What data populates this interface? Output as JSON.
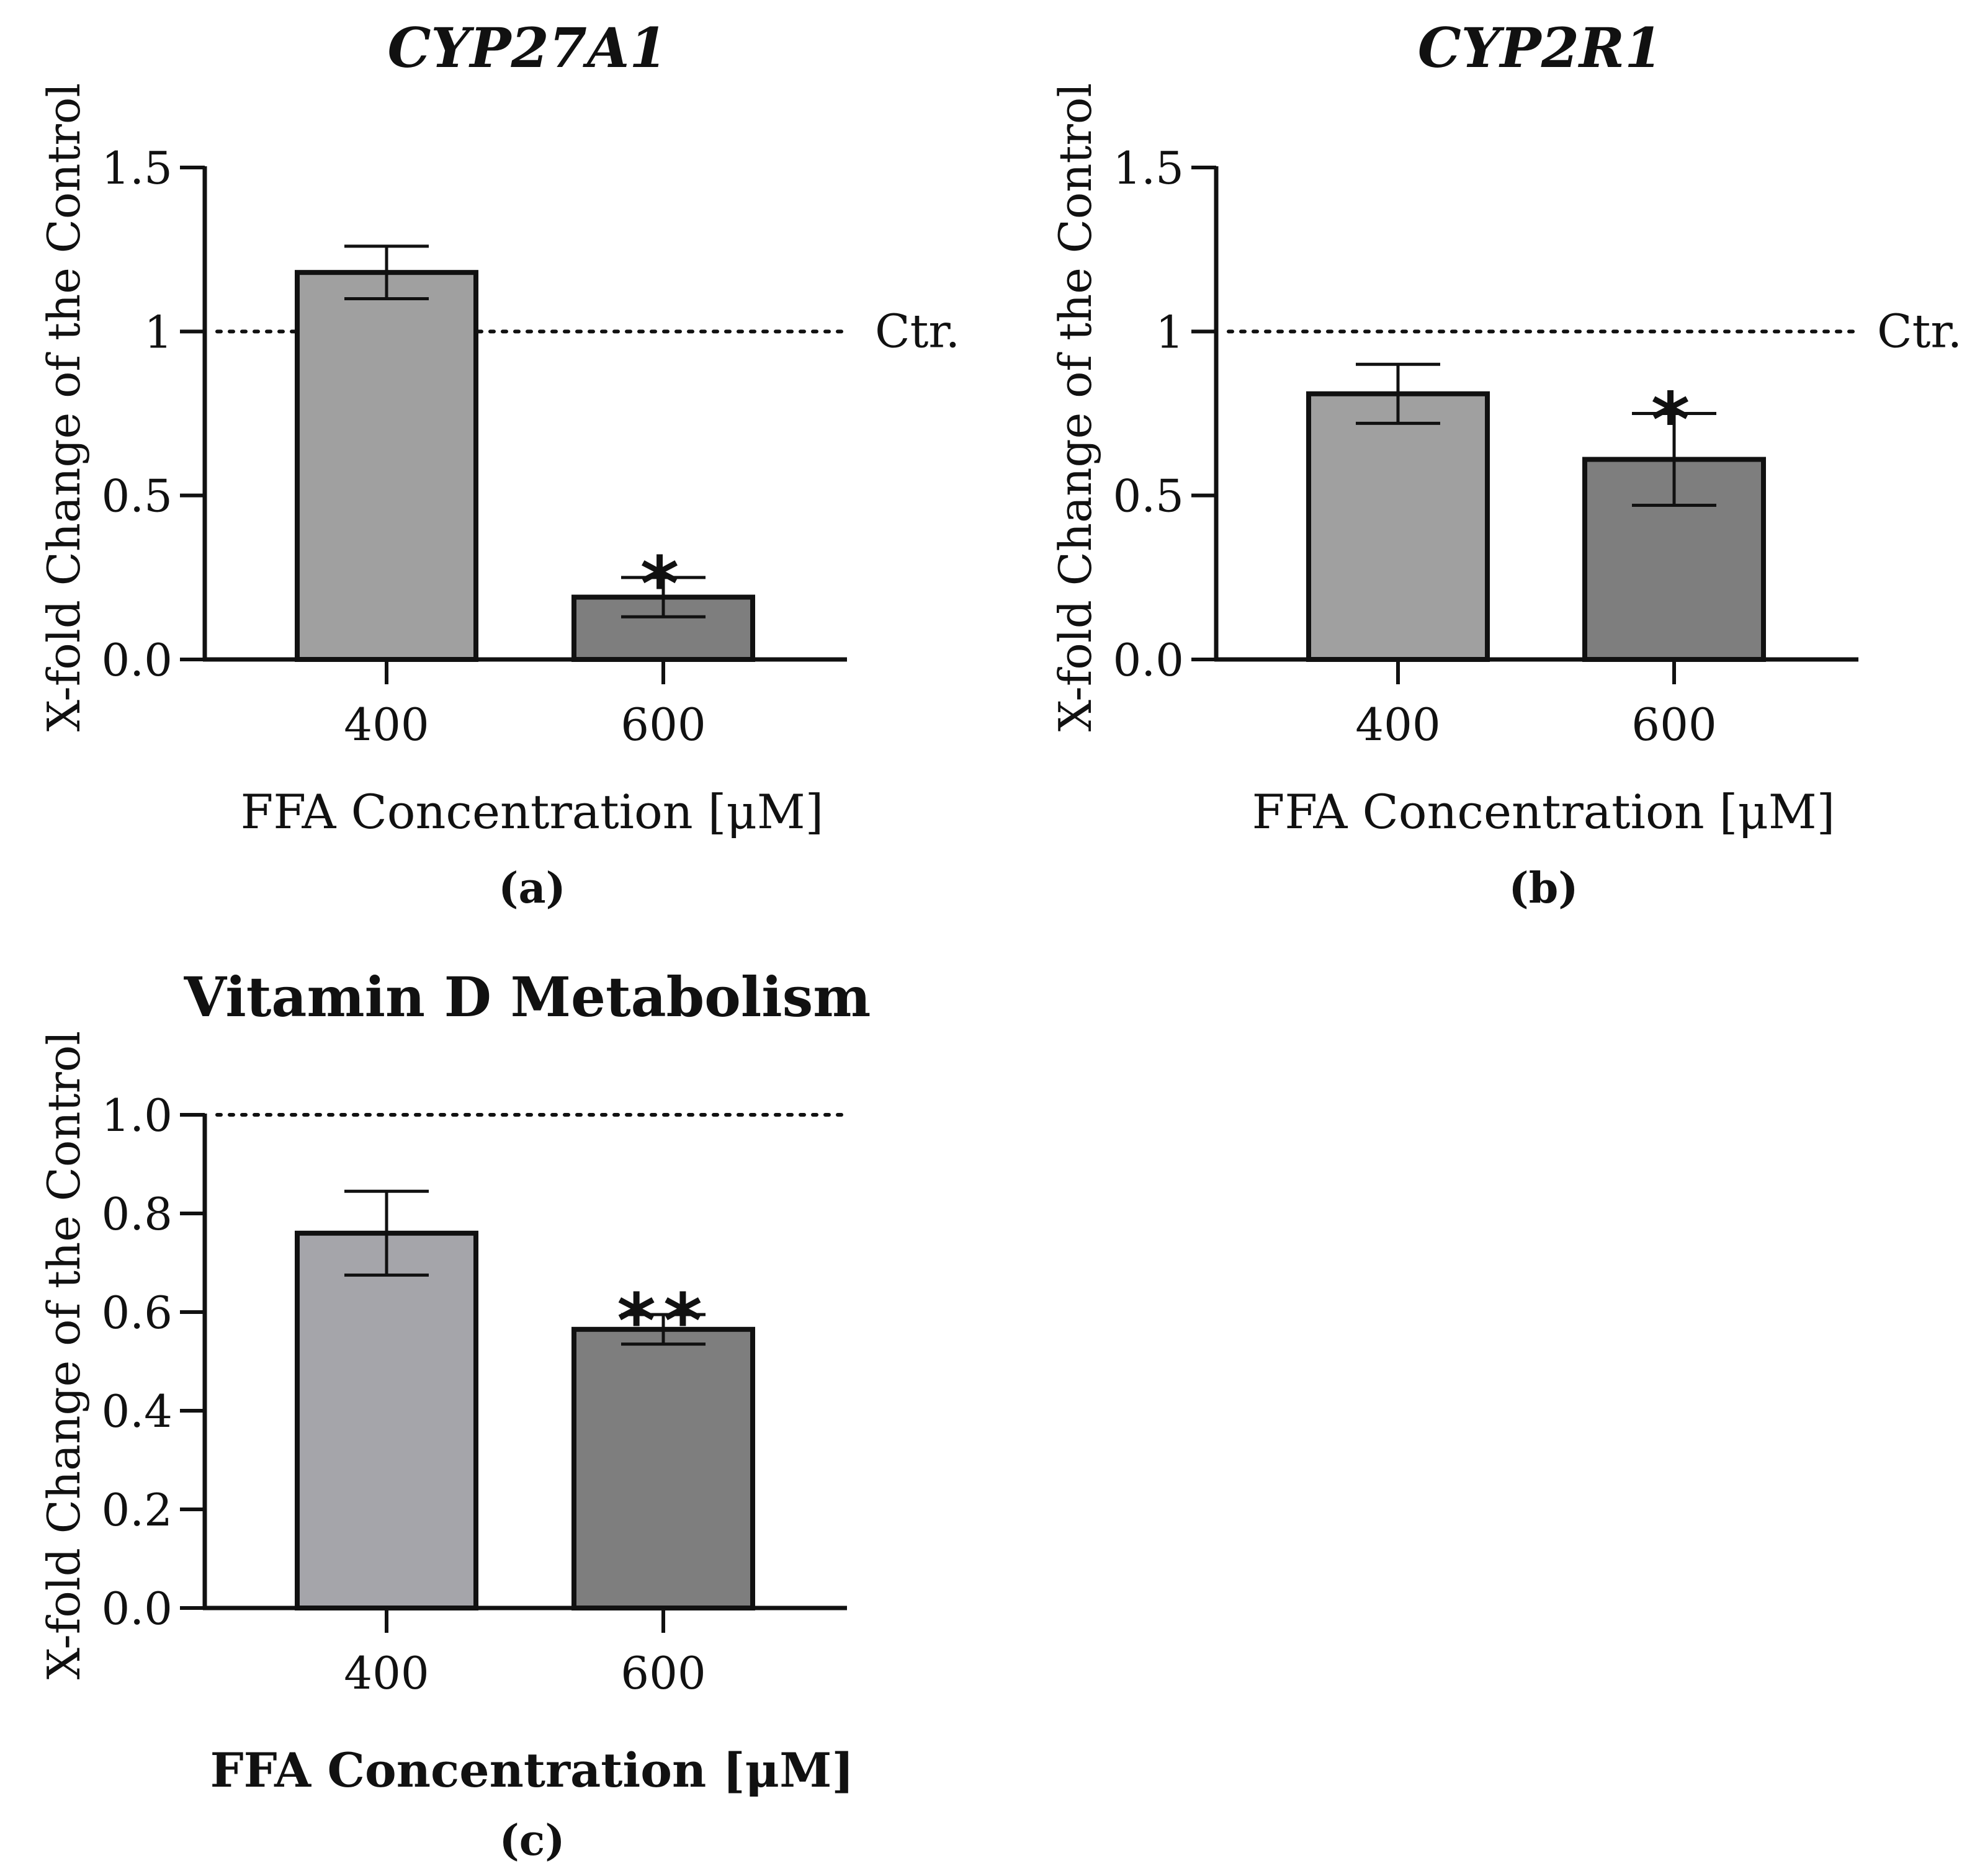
{
  "colors": {
    "bar_400": "#a0a0a0",
    "bar_600": "#7e7e7e",
    "bar_400_c": "#a5a5aa",
    "axis": "#111111"
  },
  "chart_data": [
    {
      "type": "bar",
      "title": "CYP27A1",
      "panel_label": "(a)",
      "categories": [
        "400",
        "600"
      ],
      "values": [
        1.18,
        0.19
      ],
      "error": [
        0.08,
        0.06
      ],
      "significance": [
        "",
        "*"
      ],
      "ylim": [
        0,
        1.5
      ],
      "yticks": [
        "0.0",
        "0.5",
        "1",
        "1.5"
      ],
      "ytick_values": [
        0,
        0.5,
        1,
        1.5
      ],
      "ylabel": "X-fold Change of the Control",
      "xlabel": "FFA Concentration [μM]",
      "reference": {
        "value": 1,
        "label": "Ctr."
      }
    },
    {
      "type": "bar",
      "title": "CYP2R1",
      "panel_label": "(b)",
      "categories": [
        "400",
        "600"
      ],
      "values": [
        0.81,
        0.61
      ],
      "error": [
        0.09,
        0.14
      ],
      "significance": [
        "",
        "*"
      ],
      "ylim": [
        0,
        1.5
      ],
      "yticks": [
        "0.0",
        "0.5",
        "1",
        "1.5"
      ],
      "ytick_values": [
        0,
        0.5,
        1,
        1.5
      ],
      "ylabel": "X-fold Change of the Control",
      "xlabel": "FFA Concentration [μM]",
      "reference": {
        "value": 1,
        "label": "Ctr."
      }
    },
    {
      "type": "bar",
      "title": "Vitamin D Metabolism",
      "panel_label": "(c)",
      "categories": [
        "400",
        "600"
      ],
      "values": [
        0.76,
        0.565
      ],
      "error": [
        0.085,
        0.03
      ],
      "significance": [
        "",
        "**"
      ],
      "ylim": [
        0,
        1.0
      ],
      "yticks": [
        "0.0",
        "0.2",
        "0.4",
        "0.6",
        "0.8",
        "1.0"
      ],
      "ytick_values": [
        0,
        0.2,
        0.4,
        0.6,
        0.8,
        1.0
      ],
      "ylabel": "X-fold Change of the Control",
      "xlabel": "FFA Concentration [μM]",
      "reference": {
        "value": 1.0,
        "label": ""
      }
    }
  ]
}
